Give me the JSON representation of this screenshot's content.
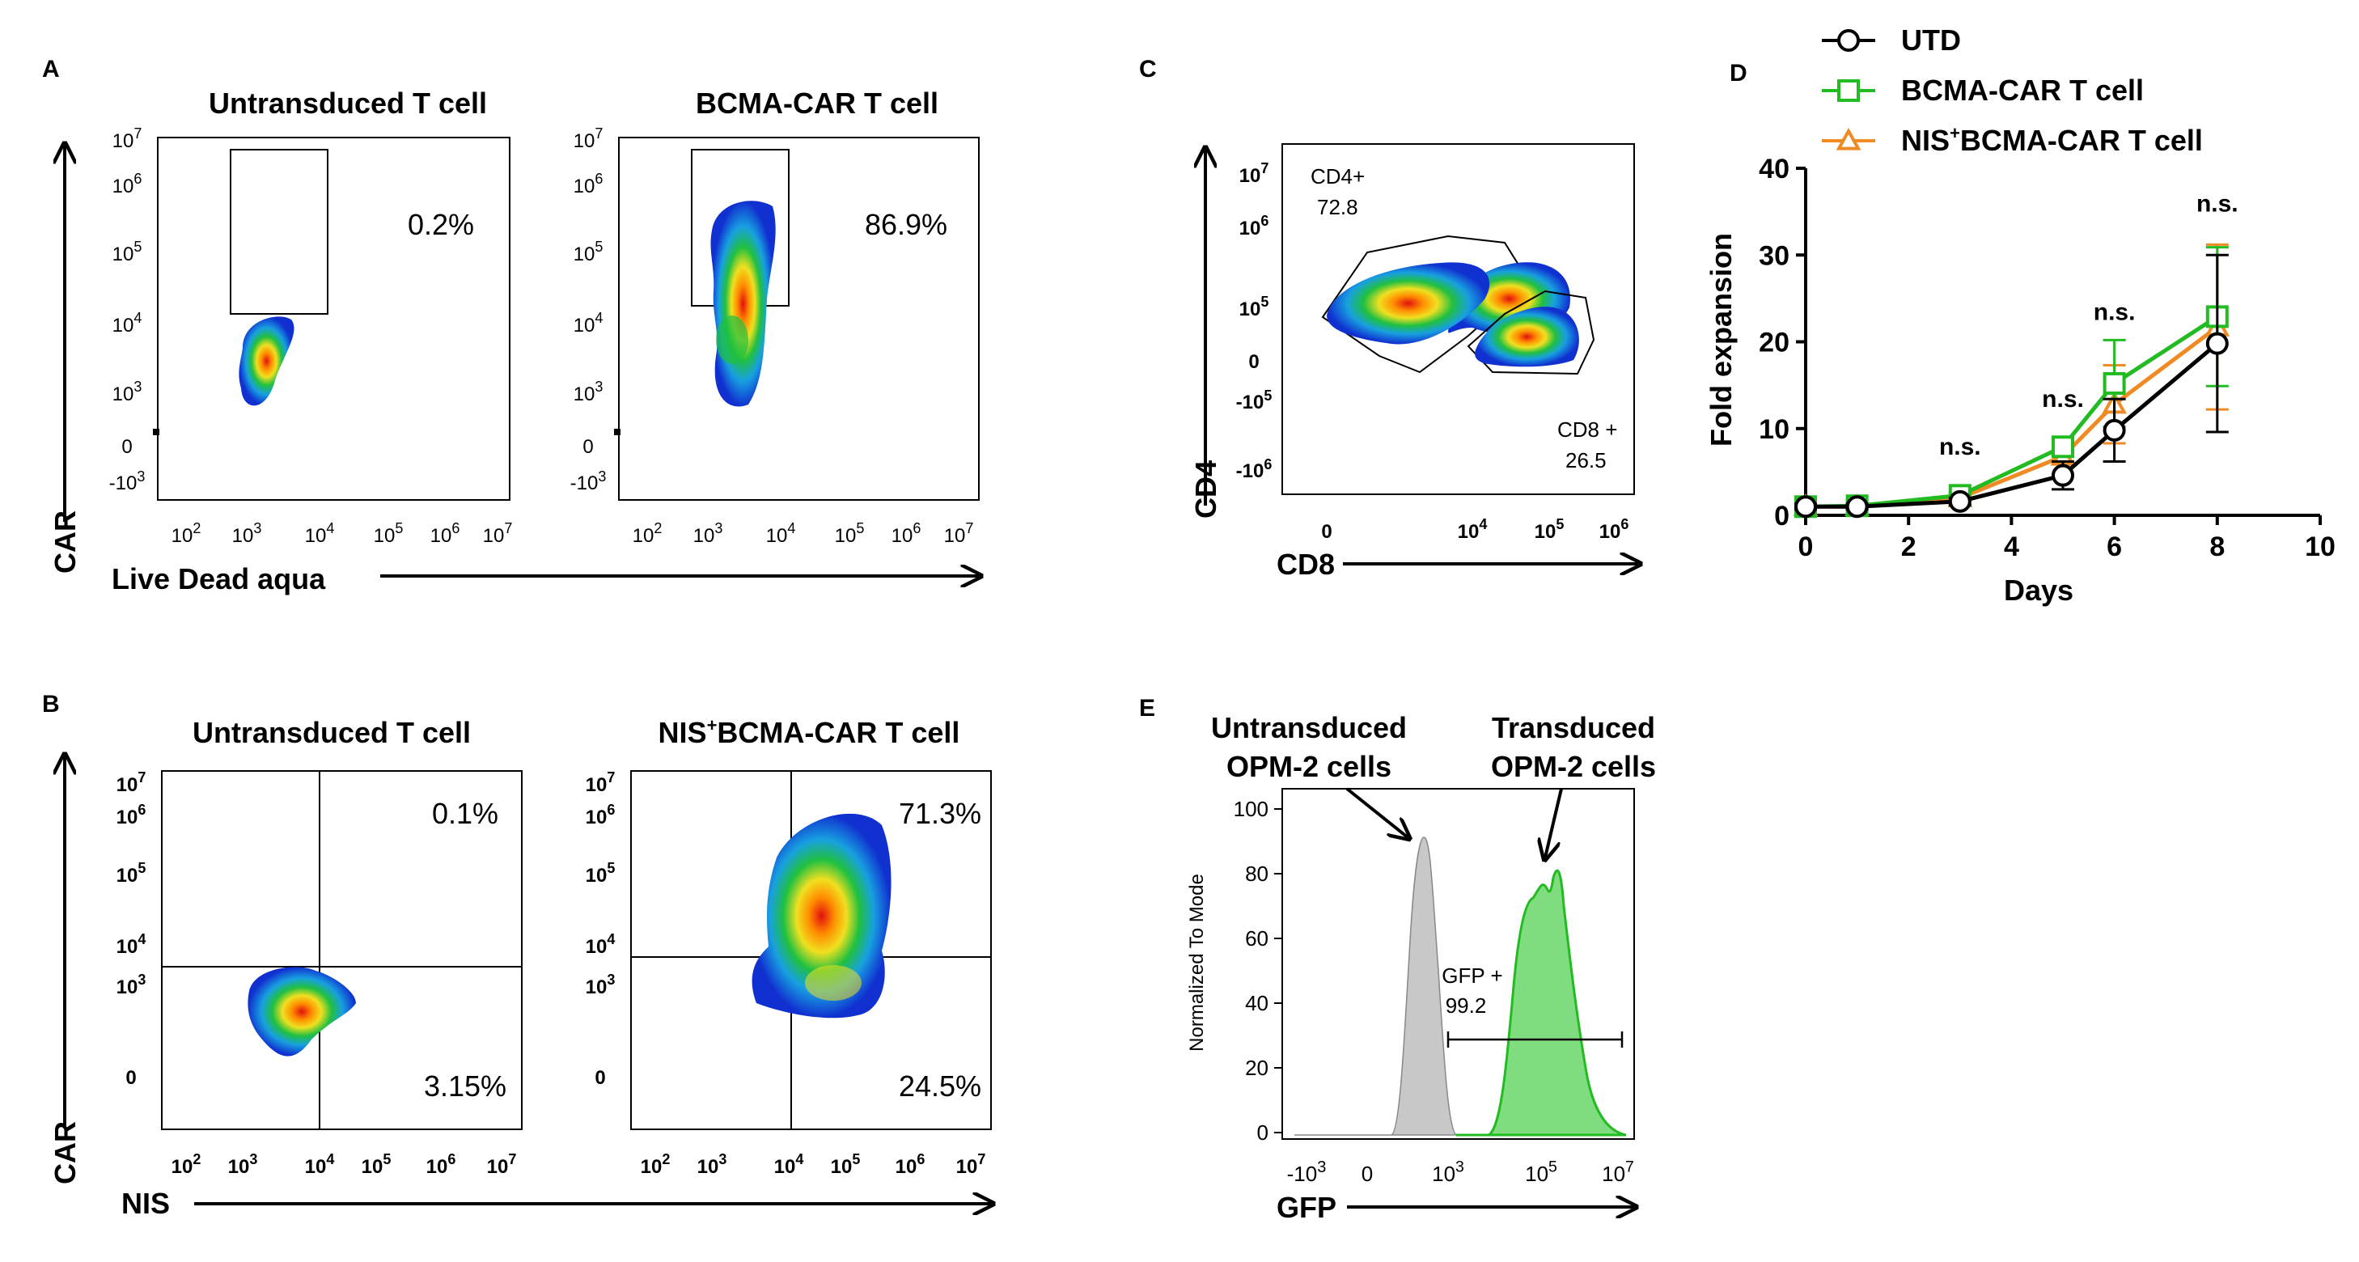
{
  "panels": {
    "A": {
      "letter": "A",
      "left_title": "Untransduced T cell",
      "right_title": "BCMA-CAR T cell",
      "left_pct": "0.2%",
      "right_pct": "86.9%",
      "y_label": "CAR",
      "x_label": "Live Dead aqua"
    },
    "B": {
      "letter": "B",
      "left_title": "Untransduced T cell",
      "right_title_prefix": "NIS",
      "right_title_sup": "+",
      "right_title_suffix": "BCMA-CAR T cell",
      "left_ur": "0.1%",
      "left_lr": "3.15%",
      "right_ur": "71.3%",
      "right_lr": "24.5%",
      "y_label": "CAR",
      "x_label": "NIS"
    },
    "C": {
      "letter": "C",
      "gate1_name": "CD4+",
      "gate1_value": "72.8",
      "gate2_name": "CD8 +",
      "gate2_value": "26.5",
      "y_label": "CD4",
      "x_label": "CD8"
    },
    "E": {
      "letter": "E",
      "label_untransduced_1": "Untransduced",
      "label_untransduced_2": "OPM-2 cells",
      "label_transduced_1": "Transduced",
      "label_transduced_2": "OPM-2 cells",
      "gate_name": "GFP +",
      "gate_value": "99.2",
      "y_label": "Normalized To Mode",
      "x_label": "GFP",
      "y_ticks": [
        "0",
        "20",
        "40",
        "60",
        "80",
        "100"
      ]
    }
  },
  "chart_data": {
    "type": "line",
    "panel_letter": "D",
    "title": "",
    "xlabel": "Days",
    "ylabel": "Fold expansion",
    "xlim": [
      0,
      10
    ],
    "ylim": [
      0,
      40
    ],
    "x_ticks": [
      "0",
      "2",
      "4",
      "6",
      "8",
      "10"
    ],
    "y_ticks": [
      "0",
      "10",
      "20",
      "30",
      "40"
    ],
    "annotations": [
      {
        "x": 3,
        "y": 7,
        "text": "n.s."
      },
      {
        "x": 5,
        "y": 12.5,
        "text": "n.s."
      },
      {
        "x": 6,
        "y": 22.5,
        "text": "n.s."
      },
      {
        "x": 8,
        "y": 35,
        "text": "n.s."
      }
    ],
    "series": [
      {
        "name": "UTD",
        "prefix": "UTD",
        "sup": "",
        "suffix": "",
        "color": "#000000",
        "marker": "circle",
        "x": [
          0,
          1,
          3,
          5,
          6,
          8
        ],
        "values": [
          1,
          1,
          1.6,
          4.6,
          9.8,
          19.8
        ],
        "err": [
          0.3,
          0.3,
          0.4,
          1.6,
          3.6,
          10.2
        ]
      },
      {
        "name": "BCMA-CAR T cell",
        "prefix": "BCMA-CAR T cell",
        "sup": "",
        "suffix": "",
        "color": "#22bb22",
        "marker": "square",
        "x": [
          0,
          1,
          3,
          5,
          6,
          8
        ],
        "values": [
          1,
          1.1,
          2.3,
          7.9,
          15.2,
          22.9
        ],
        "err": [
          0.2,
          0.2,
          0.3,
          0.8,
          5.0,
          8.0
        ]
      },
      {
        "name": "NIS+BCMA-CAR T cell",
        "prefix": "NIS",
        "sup": "+",
        "suffix": "BCMA-CAR T cell",
        "color": "#f08a24",
        "marker": "triangle",
        "x": [
          0,
          1,
          3,
          5,
          6,
          8
        ],
        "values": [
          1,
          1,
          2.0,
          6.8,
          12.8,
          21.7
        ],
        "err": [
          0.2,
          0.2,
          0.3,
          0.8,
          4.5,
          9.5
        ]
      }
    ]
  },
  "colors": {
    "green_hist_fill": "#7fdc7f",
    "green_hist_line": "#22bb22",
    "grey_hist_fill": "#c8c8c8"
  }
}
